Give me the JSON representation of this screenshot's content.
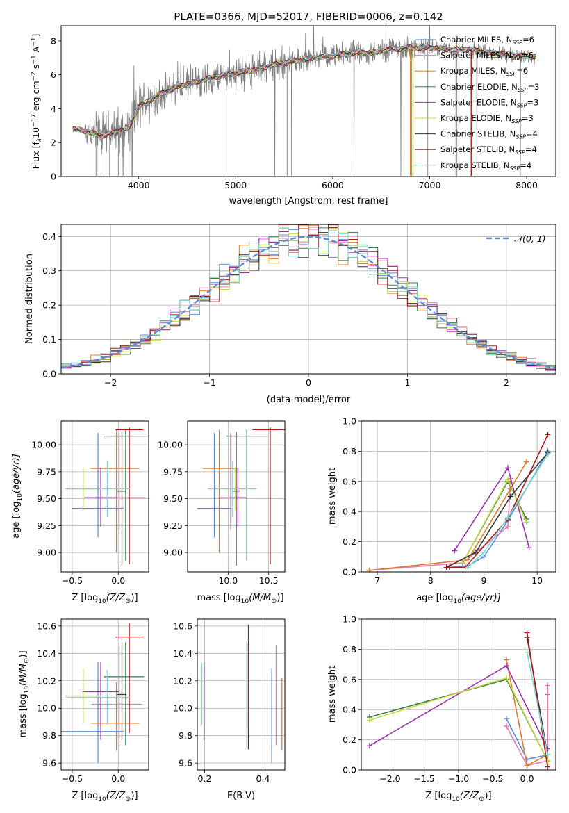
{
  "figure_title": "PLATE=0366, MJD=52017, FIBERID=0006, z=0.142",
  "models": [
    {
      "name": "Chabrier MILES",
      "nssp": "6",
      "color": "#5b8bd6"
    },
    {
      "name": "Salpeter MILES",
      "nssp": "6",
      "color": "#e87ab4"
    },
    {
      "name": "Kroupa MILES",
      "nssp": "6",
      "color": "#e07b2a"
    },
    {
      "name": "Chabrier ELODIE",
      "nssp": "3",
      "color": "#3a7a52"
    },
    {
      "name": "Salpeter ELODIE",
      "nssp": "3",
      "color": "#9a30b0"
    },
    {
      "name": "Kroupa ELODIE",
      "nssp": "3",
      "color": "#c8dc3c"
    },
    {
      "name": "Chabrier STELIB",
      "nssp": "4",
      "color": "#333333"
    },
    {
      "name": "Salpeter STELIB",
      "nssp": "4",
      "color": "#b01818"
    },
    {
      "name": "Kroupa STELIB",
      "nssp": "4",
      "color": "#7fd6d6"
    }
  ],
  "chart_data": [
    {
      "id": "spectrum",
      "type": "line",
      "xlabel": "wavelength [Angstrom, rest frame]",
      "ylabel_main": "Flux [f",
      "ylabel_sub1": "λ",
      "ylabel_mid": "10",
      "ylabel_sup1": "−17",
      "ylabel_rest": " erg cm",
      "ylabel_sup2": "−2",
      "ylabel_rest2": " s",
      "ylabel_sup3": "−1",
      "ylabel_rest3": " A",
      "ylabel_sup4": "−1",
      "ylabel_end": "]",
      "xlim": [
        3200,
        8300
      ],
      "ylim": [
        0,
        8.9
      ],
      "xticks": [
        4000,
        5000,
        6000,
        7000,
        8000
      ],
      "yticks": [
        0,
        2,
        4,
        6,
        8
      ],
      "data_color": "#808080",
      "continuum": {
        "x": [
          3320,
          3450,
          3600,
          3750,
          3900,
          4000,
          4200,
          4400,
          4600,
          4800,
          5000,
          5200,
          5400,
          5600,
          5800,
          6000,
          6200,
          6400,
          6600,
          6800,
          7000,
          7200,
          7400,
          7600,
          7800,
          8000,
          8100
        ],
        "y": [
          2.8,
          2.7,
          2.4,
          2.6,
          2.9,
          4.1,
          4.8,
          5.3,
          5.6,
          5.9,
          6.1,
          6.3,
          6.6,
          6.8,
          7.0,
          7.1,
          7.3,
          7.3,
          7.5,
          7.6,
          7.6,
          7.5,
          7.5,
          7.3,
          7.2,
          7.1,
          7.1
        ]
      }
    },
    {
      "id": "residuals",
      "type": "histogram",
      "xlabel": "(data-model)/error",
      "ylabel": "Normed distribution",
      "xlim": [
        -2.5,
        2.5
      ],
      "ylim": [
        0,
        0.435
      ],
      "xticks": [
        -2,
        -1,
        0,
        1,
        2
      ],
      "yticks": [
        0.0,
        0.1,
        0.2,
        0.3,
        0.4
      ],
      "legend_label": "𝒩(0, 1)",
      "gauss_color": "#5b8bd6",
      "bins": [
        -2.5,
        2.5,
        50
      ]
    },
    {
      "id": "age-vs-Z",
      "type": "errorbar",
      "xlabel": "Z [log",
      "xlabel_sub": "10",
      "xlabel_rest": "(Z/Z",
      "xlabel_sun": "⊙",
      "xlabel_end": ")]",
      "ylabel": "age  [log",
      "ylabel_sub": "10",
      "ylabel_rest": "(age/yr)]",
      "xlim": [
        -0.62,
        0.33
      ],
      "ylim": [
        8.82,
        10.22
      ],
      "xticks": [
        -0.5,
        0.0
      ],
      "yticks": [
        9.0,
        9.25,
        9.5,
        9.75,
        10.0
      ],
      "points": [
        {
          "x": -0.22,
          "xerr": [
            0.28,
            0.28
          ],
          "y": 9.41,
          "yerr": [
            0.27,
            0.7
          ]
        },
        {
          "x": 0.01,
          "xerr": [
            0.3,
            0.28
          ],
          "y": 9.51,
          "yerr": [
            0.3,
            0.6
          ]
        },
        {
          "x": -0.02,
          "xerr": [
            0.28,
            0.25
          ],
          "y": 9.78,
          "yerr": [
            0.78,
            0.36
          ]
        },
        {
          "x": 0.08,
          "xerr": [
            0.24,
            0.24
          ],
          "y": 10.08,
          "yerr": [
            1.16,
            0.06
          ]
        },
        {
          "x": -0.19,
          "xerr": [
            0.18,
            0.18
          ],
          "y": 9.51,
          "yerr": [
            0.27,
            0.28
          ]
        },
        {
          "x": -0.38,
          "xerr": [
            0.2,
            0.2
          ],
          "y": 9.59,
          "yerr": [
            0.2,
            0.2
          ]
        },
        {
          "x": 0.04,
          "xerr": [
            0.05,
            0.05
          ],
          "y": 9.57,
          "yerr": [
            0.69,
            0.55
          ]
        },
        {
          "x": 0.12,
          "xerr": [
            0.15,
            0.15
          ],
          "y": 10.14,
          "yerr": [
            1.25,
            0.02
          ]
        },
        {
          "x": -0.12,
          "xerr": [
            0.45,
            0.25
          ],
          "y": 9.59,
          "yerr": [
            0.26,
            0.26
          ]
        }
      ]
    },
    {
      "id": "age-vs-mass",
      "type": "errorbar",
      "xlabel": "mass [log",
      "xlabel_sub": "10",
      "xlabel_rest": "(M/M",
      "xlabel_sun": "⊙",
      "xlabel_end": ")]",
      "xlim": [
        9.5,
        10.7
      ],
      "ylim": [
        8.82,
        10.22
      ],
      "xticks": [
        10.0,
        10.5
      ],
      "yticks": [
        9.0,
        9.25,
        9.5,
        9.75,
        10.0
      ],
      "points": [
        {
          "x": 9.83,
          "xerr": [
            0.21,
            0.21
          ],
          "y": 9.41,
          "yerr": [
            0.27,
            0.7
          ]
        },
        {
          "x": 10.03,
          "xerr": [
            0.15,
            0.15
          ],
          "y": 9.51,
          "yerr": [
            0.3,
            0.6
          ]
        },
        {
          "x": 9.89,
          "xerr": [
            0.2,
            0.22
          ],
          "y": 9.78,
          "yerr": [
            0.78,
            0.36
          ]
        },
        {
          "x": 10.23,
          "xerr": [
            0.25,
            0.25
          ],
          "y": 10.08,
          "yerr": [
            1.16,
            0.06
          ]
        },
        {
          "x": 10.12,
          "xerr": [
            0.1,
            0.1
          ],
          "y": 9.51,
          "yerr": [
            0.27,
            0.28
          ]
        },
        {
          "x": 10.09,
          "xerr": [
            0.1,
            0.1
          ],
          "y": 9.59,
          "yerr": [
            0.2,
            0.2
          ]
        },
        {
          "x": 10.1,
          "xerr": [
            0.04,
            0.04
          ],
          "y": 9.57,
          "yerr": [
            0.69,
            0.55
          ]
        },
        {
          "x": 10.52,
          "xerr": [
            0.22,
            0.22
          ],
          "y": 10.14,
          "yerr": [
            1.25,
            0.02
          ]
        },
        {
          "x": 10.05,
          "xerr": [
            0.3,
            0.3
          ],
          "y": 9.59,
          "yerr": [
            0.26,
            0.26
          ]
        }
      ]
    },
    {
      "id": "massweight-vs-age",
      "type": "line",
      "xlabel": "age  [log",
      "xlabel_sub": "10",
      "xlabel_rest": "(age/yr)]",
      "ylabel": "mass weight",
      "xlim": [
        6.7,
        10.35
      ],
      "ylim": [
        0,
        1.0
      ],
      "xticks": [
        7,
        8,
        9,
        10
      ],
      "yticks": [
        0.0,
        0.2,
        0.4,
        0.6,
        0.8,
        1.0
      ],
      "series": [
        {
          "x": [
            8.35,
            8.7,
            9.0,
            9.45,
            10.2
          ],
          "y": [
            0.03,
            0.04,
            0.1,
            0.34,
            0.8
          ]
        },
        {
          "x": [
            6.85,
            8.6,
            9.45,
            9.5
          ],
          "y": [
            0.01,
            0.06,
            0.3,
            0.62
          ]
        },
        {
          "x": [
            6.85,
            8.7,
            9.5,
            9.8
          ],
          "y": [
            0.01,
            0.08,
            0.55,
            0.73
          ]
        },
        {
          "x": [
            8.6,
            9.45,
            9.8
          ],
          "y": [
            0.06,
            0.6,
            0.35
          ]
        },
        {
          "x": [
            8.45,
            9.45,
            9.85
          ],
          "y": [
            0.14,
            0.69,
            0.16
          ]
        },
        {
          "x": [
            8.6,
            9.45,
            9.8
          ],
          "y": [
            0.06,
            0.61,
            0.33
          ]
        },
        {
          "x": [
            8.3,
            8.85,
            9.5,
            10.2
          ],
          "y": [
            0.03,
            0.13,
            0.5,
            0.79
          ]
        },
        {
          "x": [
            8.3,
            8.65,
            9.45,
            10.2
          ],
          "y": [
            0.03,
            0.03,
            0.35,
            0.91
          ]
        },
        {
          "x": [
            8.7,
            9.0,
            9.45,
            10.2
          ],
          "y": [
            0.03,
            0.13,
            0.36,
            0.78
          ]
        }
      ]
    },
    {
      "id": "mass-vs-Z",
      "type": "errorbar",
      "xlabel": "Z [log",
      "xlabel_sub": "10",
      "xlabel_rest": "(Z/Z",
      "xlabel_sun": "⊙",
      "xlabel_end": ")]",
      "ylabel": "mass [log",
      "ylabel_sub": "10",
      "ylabel_rest": "(M/M",
      "ylabel_sun": "⊙",
      "ylabel_end": ")]",
      "xlim": [
        -0.62,
        0.33
      ],
      "ylim": [
        9.55,
        10.65
      ],
      "xticks": [
        -0.5,
        0.0
      ],
      "yticks": [
        9.6,
        9.8,
        10.0,
        10.2,
        10.4,
        10.6
      ],
      "points": [
        {
          "x": -0.22,
          "xerr": [
            0.5,
            0.28
          ],
          "y": 9.83,
          "yerr": [
            0.23,
            0.51
          ]
        },
        {
          "x": 0.01,
          "xerr": [
            0.3,
            0.25
          ],
          "y": 10.03,
          "yerr": [
            0.3,
            0.43
          ]
        },
        {
          "x": -0.02,
          "xerr": [
            0.28,
            0.25
          ],
          "y": 9.89,
          "yerr": [
            0.2,
            0.3
          ]
        },
        {
          "x": 0.08,
          "xerr": [
            0.24,
            0.2
          ],
          "y": 10.23,
          "yerr": [
            0.5,
            0.25
          ]
        },
        {
          "x": -0.19,
          "xerr": [
            0.2,
            0.2
          ],
          "y": 10.12,
          "yerr": [
            0.35,
            0.22
          ]
        },
        {
          "x": -0.38,
          "xerr": [
            0.2,
            0.2
          ],
          "y": 10.09,
          "yerr": [
            0.2,
            0.2
          ]
        },
        {
          "x": 0.04,
          "xerr": [
            0.05,
            0.05
          ],
          "y": 10.1,
          "yerr": [
            0.33,
            0.38
          ]
        },
        {
          "x": 0.12,
          "xerr": [
            0.15,
            0.15
          ],
          "y": 10.52,
          "yerr": [
            0.7,
            0.1
          ]
        },
        {
          "x": -0.12,
          "xerr": [
            0.45,
            0.25
          ],
          "y": 10.08,
          "yerr": [
            0.2,
            0.2
          ]
        }
      ]
    },
    {
      "id": "mass-vs-ebv",
      "type": "errorbar",
      "xlabel": "E(B-V)",
      "xlim": [
        0.175,
        0.475
      ],
      "ylim": [
        9.55,
        10.65
      ],
      "xticks": [
        0.2,
        0.4
      ],
      "yticks": [
        9.6,
        9.8,
        10.0,
        10.2,
        10.4,
        10.6
      ],
      "points": [
        {
          "x": 0.43,
          "xerr": [
            0,
            0
          ],
          "y": 9.83,
          "yerr": [
            0.23,
            0.46
          ]
        },
        {
          "x": 0.445,
          "xerr": [
            0,
            0
          ],
          "y": 10.03,
          "yerr": [
            0.3,
            0.43
          ]
        },
        {
          "x": 0.465,
          "xerr": [
            0,
            0
          ],
          "y": 9.89,
          "yerr": [
            0.2,
            0.33
          ]
        },
        {
          "x": 0.345,
          "xerr": [
            0,
            0
          ],
          "y": 10.23,
          "yerr": [
            0.53,
            0.26
          ]
        },
        {
          "x": 0.198,
          "xerr": [
            0,
            0
          ],
          "y": 10.12,
          "yerr": [
            0.35,
            0.22
          ]
        },
        {
          "x": 0.188,
          "xerr": [
            0,
            0
          ],
          "y": 10.09,
          "yerr": [
            0.22,
            0.21
          ]
        },
        {
          "x": 0.35,
          "xerr": [
            0,
            0
          ],
          "y": 10.1,
          "yerr": [
            0.4,
            0.38
          ]
        },
        {
          "x": 0.35,
          "xerr": [
            0,
            0
          ],
          "y": 10.52,
          "yerr": [
            0.7,
            0.09
          ]
        },
        {
          "x": 0.19,
          "xerr": [
            0,
            0
          ],
          "y": 10.08,
          "yerr": [
            0.2,
            0.25
          ]
        }
      ]
    },
    {
      "id": "massweight-vs-Z",
      "type": "line",
      "xlabel": "Z [log",
      "xlabel_sub": "10",
      "xlabel_rest": "(Z/Z",
      "xlabel_sun": "⊙",
      "xlabel_end": ")]",
      "ylabel": "mass weight",
      "xlim": [
        -2.42,
        0.42
      ],
      "ylim": [
        0,
        1.0
      ],
      "xticks": [
        -2.0,
        -1.5,
        -1.0,
        -0.5,
        0.0
      ],
      "yticks": [
        0.0,
        0.2,
        0.4,
        0.6,
        0.8,
        1.0
      ],
      "series": [
        {
          "x": [
            -0.3,
            0.0,
            0.3,
            0.3
          ],
          "y": [
            0.34,
            0.07,
            0.1,
            0.5
          ]
        },
        {
          "x": [
            -0.3,
            0.0,
            0.3,
            0.3
          ],
          "y": [
            0.29,
            0.03,
            0.06,
            0.56
          ]
        },
        {
          "x": [
            -0.3,
            0.0,
            0.3,
            0.3
          ],
          "y": [
            0.73,
            0.03,
            0.1,
            0.06
          ]
        },
        {
          "x": [
            -2.3,
            -0.3,
            0.3
          ],
          "y": [
            0.35,
            0.6,
            0.06
          ]
        },
        {
          "x": [
            -2.3,
            -0.3,
            0.3
          ],
          "y": [
            0.16,
            0.69,
            0.14
          ]
        },
        {
          "x": [
            -2.3,
            -0.3,
            0.3
          ],
          "y": [
            0.33,
            0.61,
            0.06
          ]
        },
        {
          "x": [
            0.0,
            0.3
          ],
          "y": [
            0.88,
            0.1
          ]
        },
        {
          "x": [
            0.0,
            0.3
          ],
          "y": [
            0.91,
            0.02
          ]
        },
        {
          "x": [
            0.0,
            0.3
          ],
          "y": [
            0.78,
            0.1
          ]
        }
      ]
    }
  ]
}
